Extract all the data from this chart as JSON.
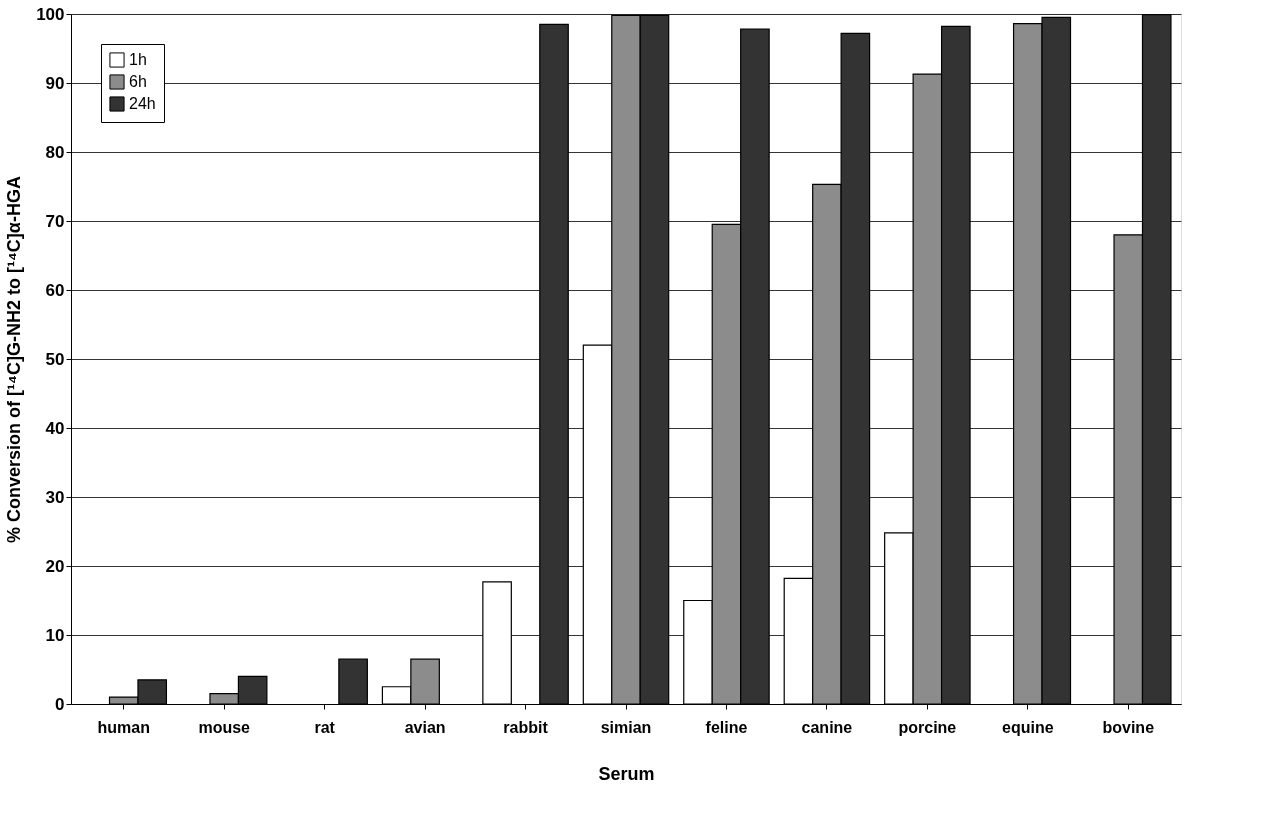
{
  "chart_data": {
    "type": "bar",
    "xlabel": "Serum",
    "ylabel": "% Conversion of [¹⁴C]G-NH2 to [¹⁴C]α-HGA",
    "categories": [
      "human",
      "mouse",
      "rat",
      "avian",
      "rabbit",
      "simian",
      "feline",
      "canine",
      "porcine",
      "equine",
      "bovine"
    ],
    "series": [
      {
        "name": "1h",
        "color": "#ffffff",
        "values": [
          null,
          null,
          null,
          2.5,
          17.7,
          52,
          15,
          18.2,
          24.8,
          null,
          null
        ]
      },
      {
        "name": "6h",
        "color": "#8c8c8c",
        "values": [
          1,
          1.5,
          null,
          6.5,
          null,
          99.8,
          69.5,
          75.3,
          91.3,
          98.6,
          68
        ]
      },
      {
        "name": "24h",
        "color": "#333333",
        "values": [
          3.5,
          4,
          6.5,
          null,
          98.5,
          99.8,
          97.8,
          97.2,
          98.2,
          99.5,
          99.9
        ]
      }
    ],
    "ylim": [
      0,
      100
    ],
    "yticks": [
      0,
      10,
      20,
      30,
      40,
      50,
      60,
      70,
      80,
      90,
      100
    ],
    "grid": "y",
    "legend": "top left"
  }
}
